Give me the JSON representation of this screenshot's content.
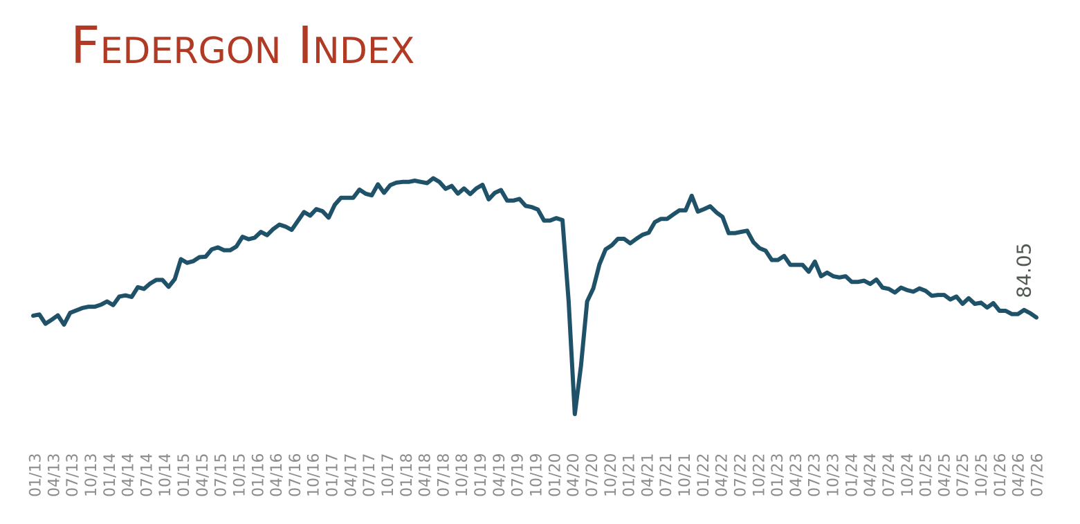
{
  "colors": {
    "title": "#b03a24",
    "line": "#1f5269",
    "tick_label": "#8c8c8c",
    "data_label": "#505a50"
  },
  "chart_data": {
    "type": "line",
    "title": "Federgon Index",
    "xlabel": "",
    "ylabel": "",
    "grid": false,
    "legend": "none",
    "ylim": [
      60,
      140
    ],
    "x_tick_labels": [
      "01/13",
      "04/13",
      "07/13",
      "10/13",
      "01/14",
      "04/14",
      "07/14",
      "10/14",
      "01/15",
      "04/15",
      "07/15",
      "10/15",
      "01/16",
      "04/16",
      "07/16",
      "10/16",
      "01/17",
      "04/17",
      "07/17",
      "10/17",
      "01/18",
      "04/18",
      "07/18",
      "10/18",
      "01/19",
      "04/19",
      "07/19",
      "10/19",
      "01/20",
      "04/20",
      "07/20",
      "10/20",
      "01/21",
      "04/21",
      "07/21",
      "10/21",
      "01/22",
      "04/22",
      "07/22",
      "10/22",
      "01/23",
      "04/23",
      "07/23",
      "10/23",
      "01/24",
      "04/24",
      "07/24",
      "10/24",
      "01/25",
      "04/25",
      "07/25",
      "10/25",
      "01/26",
      "04/26",
      "07/26"
    ],
    "series": [
      {
        "values": [
          84.5,
          84.8,
          82.5,
          83.5,
          84.6,
          82.3,
          85.2,
          85.8,
          86.4,
          86.7,
          86.7,
          87.2,
          88.0,
          87.1,
          89.2,
          89.5,
          89.1,
          91.5,
          91.1,
          92.4,
          93.3,
          93.3,
          91.6,
          93.5,
          98.4,
          97.5,
          97.9,
          98.9,
          99.0,
          100.8,
          101.3,
          100.6,
          100.6,
          101.5,
          103.9,
          103.3,
          103.7,
          105.1,
          104.3,
          105.8,
          106.9,
          106.4,
          105.6,
          107.8,
          110.0,
          109.1,
          110.7,
          110.2,
          108.6,
          111.8,
          113.5,
          113.5,
          113.5,
          115.5,
          114.5,
          114.1,
          116.8,
          114.7,
          116.6,
          117.2,
          117.4,
          117.4,
          117.7,
          117.4,
          117.1,
          118.3,
          117.4,
          115.7,
          116.4,
          114.5,
          115.8,
          114.4,
          115.8,
          116.7,
          113.1,
          114.7,
          115.4,
          112.8,
          112.8,
          113.2,
          111.5,
          111.2,
          110.6,
          107.9,
          107.9,
          108.5,
          108.0,
          88.0,
          60.3,
          72.1,
          88.0,
          91.2,
          97.1,
          100.8,
          101.8,
          103.4,
          103.4,
          102.3,
          103.4,
          104.4,
          104.9,
          107.5,
          108.3,
          108.3,
          109.4,
          110.4,
          110.4,
          114.0,
          110.1,
          110.7,
          111.4,
          109.9,
          108.8,
          104.8,
          104.8,
          105.1,
          105.4,
          102.6,
          101.1,
          100.5,
          98.2,
          98.2,
          99.2,
          97.0,
          97.0,
          97.0,
          95.3,
          97.8,
          94.2,
          95.1,
          94.2,
          93.9,
          94.2,
          92.8,
          92.8,
          93.1,
          92.3,
          93.4,
          91.4,
          91.1,
          90.2,
          91.4,
          90.8,
          90.4,
          91.2,
          90.6,
          89.4,
          89.6,
          89.6,
          88.5,
          89.2,
          87.4,
          88.8,
          87.4,
          87.7,
          86.5,
          87.6,
          85.7,
          85.7,
          84.9,
          84.9,
          85.9,
          85.1,
          84.05
        ]
      }
    ],
    "annotations": [
      {
        "text": "84.05",
        "at_index": 163,
        "value": 84.05
      }
    ]
  }
}
